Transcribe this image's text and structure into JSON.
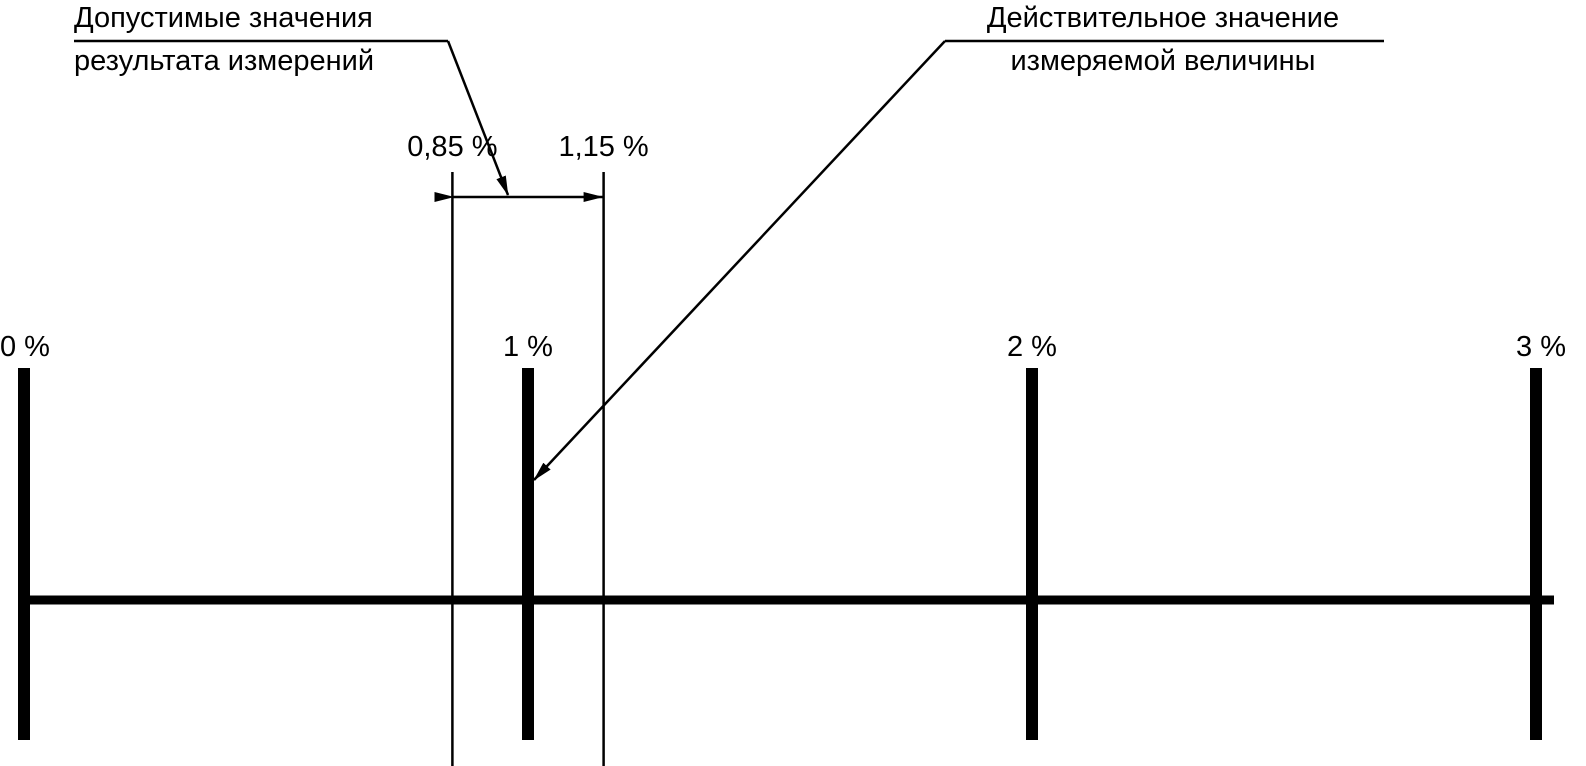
{
  "callouts": {
    "tolerance": {
      "line1": "Допустимые значения",
      "line2": "результата измерений"
    },
    "true_value": {
      "line1": "Действительное значение",
      "line2": "измеряемой величины"
    }
  },
  "tolerance_bounds": {
    "lower_label": "0,85 %",
    "upper_label": "1,15 %",
    "lower": 0.85,
    "upper": 1.15
  },
  "scale": {
    "min": 0,
    "max": 3,
    "ticks": [
      {
        "value": 0,
        "label": "0 %"
      },
      {
        "value": 1,
        "label": "1 %"
      },
      {
        "value": 2,
        "label": "2 %"
      },
      {
        "value": 3,
        "label": "3 %"
      }
    ]
  },
  "true_value": 1,
  "colors": {
    "ink": "#000000",
    "background": "#ffffff"
  }
}
